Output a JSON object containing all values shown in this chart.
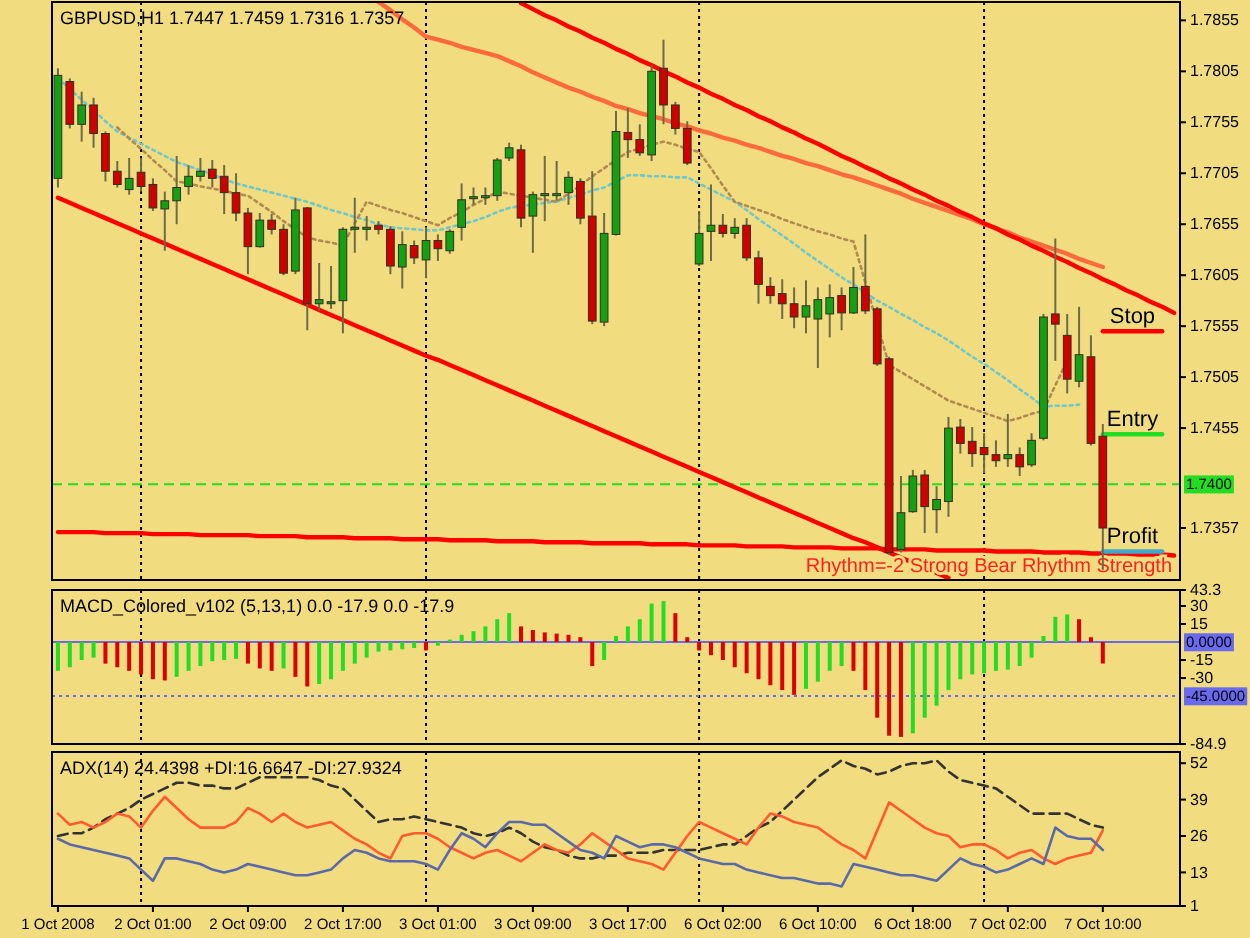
{
  "chart_data": [
    {
      "type": "candlestick",
      "title": "GBPUSD,H1 1.7447 1.7459 1.7316 1.7357",
      "tick_labels": "y",
      "grid": "x",
      "ylim": [
        1.7306,
        1.7873
      ],
      "yticks": [
        1.7855,
        1.7805,
        1.7755,
        1.7705,
        1.7655,
        1.7605,
        1.7555,
        1.7505,
        1.7455,
        1.7357
      ],
      "categories": [
        null,
        null,
        null,
        null,
        null,
        null,
        null,
        null,
        null,
        null,
        null,
        null,
        null,
        null,
        null,
        null,
        null,
        null,
        null,
        null,
        null,
        null,
        null,
        null,
        null,
        null,
        null,
        null,
        null,
        null,
        null,
        null,
        null,
        null,
        null,
        null,
        null,
        null,
        null,
        null,
        null,
        null,
        null,
        null,
        null,
        null,
        null,
        null,
        null,
        null,
        null,
        null,
        null,
        null,
        null,
        null,
        null,
        null,
        null,
        null,
        null,
        null,
        null,
        null,
        null,
        null,
        null,
        null,
        null,
        null,
        null,
        null,
        null,
        null,
        null,
        null,
        null,
        null,
        null,
        null,
        null,
        null,
        null,
        null,
        null,
        null,
        null,
        null,
        null,
        null,
        null,
        null,
        null,
        null,
        null
      ],
      "ohlc": [
        [
          1.77,
          1.7808,
          1.7691,
          1.7801
        ],
        [
          1.7795,
          1.7798,
          1.7749,
          1.7753
        ],
        [
          1.7753,
          1.7785,
          1.7736,
          1.7772
        ],
        [
          1.7772,
          1.7779,
          1.773,
          1.7744
        ],
        [
          1.7744,
          1.7746,
          1.7697,
          1.7707
        ],
        [
          1.7707,
          1.7717,
          1.7691,
          1.7694
        ],
        [
          1.7689,
          1.772,
          1.7684,
          1.77
        ],
        [
          1.7706,
          1.772,
          1.7687,
          1.7692
        ],
        [
          1.7694,
          1.77,
          1.7668,
          1.7671
        ],
        [
          1.767,
          1.7687,
          1.7629,
          1.7678
        ],
        [
          1.7678,
          1.7722,
          1.7655,
          1.7691
        ],
        [
          1.7692,
          1.7713,
          1.7684,
          1.7702
        ],
        [
          1.7702,
          1.772,
          1.7697,
          1.7707
        ],
        [
          1.7709,
          1.7718,
          1.7691,
          1.77
        ],
        [
          1.7702,
          1.7713,
          1.7665,
          1.7686
        ],
        [
          1.7686,
          1.7705,
          1.7658,
          1.7666
        ],
        [
          1.7666,
          1.7671,
          1.7606,
          1.7633
        ],
        [
          1.7633,
          1.7666,
          1.7632,
          1.7659
        ],
        [
          1.7659,
          1.7665,
          1.7645,
          1.765
        ],
        [
          1.765,
          1.7655,
          1.7605,
          1.7607
        ],
        [
          1.7609,
          1.7681,
          1.7606,
          1.7669
        ],
        [
          1.7671,
          1.7672,
          1.7551,
          1.7577
        ],
        [
          1.7577,
          1.7617,
          1.757,
          1.7581
        ],
        [
          1.7578,
          1.7614,
          1.7572,
          1.7579
        ],
        [
          1.758,
          1.7652,
          1.7548,
          1.765
        ],
        [
          1.7651,
          1.7681,
          1.7627,
          1.7652
        ],
        [
          1.7651,
          1.7663,
          1.7639,
          1.7652
        ],
        [
          1.7654,
          1.7658,
          1.7645,
          1.765
        ],
        [
          1.765,
          1.7653,
          1.7606,
          1.7614
        ],
        [
          1.7613,
          1.7648,
          1.7592,
          1.7635
        ],
        [
          1.7634,
          1.7639,
          1.7616,
          1.7622
        ],
        [
          1.762,
          1.7652,
          1.7602,
          1.7639
        ],
        [
          1.7639,
          1.7645,
          1.7619,
          1.7631
        ],
        [
          1.7629,
          1.765,
          1.7626,
          1.7648
        ],
        [
          1.7652,
          1.7695,
          1.7639,
          1.7679
        ],
        [
          1.7681,
          1.7691,
          1.7674,
          1.7682
        ],
        [
          1.7683,
          1.7691,
          1.7674,
          1.7683
        ],
        [
          1.7683,
          1.772,
          1.7678,
          1.7718
        ],
        [
          1.772,
          1.7735,
          1.7717,
          1.773
        ],
        [
          1.7728,
          1.7733,
          1.7652,
          1.7661
        ],
        [
          1.7663,
          1.7687,
          1.7627,
          1.7684
        ],
        [
          1.7684,
          1.7722,
          1.7658,
          1.7685
        ],
        [
          1.7685,
          1.7717,
          1.7678,
          1.7685
        ],
        [
          1.7686,
          1.7707,
          1.7674,
          1.7701
        ],
        [
          1.7697,
          1.77,
          1.7655,
          1.7661
        ],
        [
          1.7663,
          1.7707,
          1.7557,
          1.756
        ],
        [
          1.7559,
          1.7666,
          1.7555,
          1.7646
        ],
        [
          1.7645,
          1.7766,
          1.7644,
          1.7746
        ],
        [
          1.7745,
          1.7769,
          1.772,
          1.7738
        ],
        [
          1.7738,
          1.7753,
          1.7722,
          1.7725
        ],
        [
          1.7723,
          1.7811,
          1.7717,
          1.7805
        ],
        [
          1.7808,
          1.7836,
          1.7753,
          1.7772
        ],
        [
          1.7772,
          1.7775,
          1.7743,
          1.7749
        ],
        [
          1.7749,
          1.7756,
          1.7713,
          1.7715
        ],
        [
          1.7616,
          1.7668,
          1.7614,
          1.7646
        ],
        [
          1.7648,
          1.7694,
          1.7619,
          1.7654
        ],
        [
          1.7654,
          1.7665,
          1.7642,
          1.7646
        ],
        [
          1.7646,
          1.7661,
          1.7641,
          1.7652
        ],
        [
          1.7654,
          1.7661,
          1.7619,
          1.7622
        ],
        [
          1.7622,
          1.7629,
          1.7577,
          1.7596
        ],
        [
          1.7594,
          1.7603,
          1.7577,
          1.7585
        ],
        [
          1.7587,
          1.7601,
          1.7562,
          1.7577
        ],
        [
          1.7577,
          1.7593,
          1.7553,
          1.7564
        ],
        [
          1.7564,
          1.76,
          1.7548,
          1.7575
        ],
        [
          1.7562,
          1.7593,
          1.7514,
          1.7581
        ],
        [
          1.7567,
          1.7596,
          1.7544,
          1.7583
        ],
        [
          1.7585,
          1.7593,
          1.7551,
          1.7568
        ],
        [
          1.7568,
          1.7613,
          1.7567,
          1.7593
        ],
        [
          1.7594,
          1.7645,
          1.7567,
          1.757
        ],
        [
          1.7572,
          1.7574,
          1.7516,
          1.7518
        ],
        [
          1.7523,
          1.7525,
          1.7331,
          1.7333
        ],
        [
          1.7336,
          1.7408,
          1.7333,
          1.7372
        ],
        [
          1.7373,
          1.7414,
          1.7372,
          1.7408
        ],
        [
          1.7409,
          1.7414,
          1.7352,
          1.7378
        ],
        [
          1.7375,
          1.7398,
          1.7352,
          1.7385
        ],
        [
          1.7383,
          1.7466,
          1.7368,
          1.7455
        ],
        [
          1.7456,
          1.7464,
          1.743,
          1.744
        ],
        [
          1.7442,
          1.7456,
          1.7417,
          1.743
        ],
        [
          1.7436,
          1.745,
          1.7411,
          1.7429
        ],
        [
          1.7429,
          1.7443,
          1.7417,
          1.7423
        ],
        [
          1.7425,
          1.7469,
          1.7417,
          1.7429
        ],
        [
          1.7429,
          1.7436,
          1.7408,
          1.7417
        ],
        [
          1.7419,
          1.745,
          1.7417,
          1.7443
        ],
        [
          1.7445,
          1.7567,
          1.7443,
          1.7564
        ],
        [
          1.7567,
          1.7641,
          1.7521,
          1.7557
        ],
        [
          1.7546,
          1.7567,
          1.7489,
          1.7503
        ],
        [
          1.7501,
          1.7574,
          1.7495,
          1.7527
        ],
        [
          1.7525,
          1.7546,
          1.7438,
          1.744
        ],
        [
          1.7447,
          1.7459,
          1.7316,
          1.7357
        ],
        null,
        null,
        null,
        null,
        null,
        null
      ],
      "series": [
        {
          "type": "line",
          "color": "#ff6a3c",
          "values": [
            null,
            null,
            null,
            null,
            null,
            null,
            null,
            null,
            null,
            null,
            null,
            null,
            null,
            null,
            null,
            null,
            null,
            null,
            null,
            null,
            null,
            null,
            null,
            null,
            null,
            null,
            null,
            1.7873,
            1.7865,
            1.7856,
            1.7848,
            1.7839,
            1.7836,
            1.7833,
            1.7829,
            1.7826,
            1.7823,
            1.782,
            1.7815,
            1.781,
            1.7804,
            1.7799,
            1.7794,
            1.7789,
            1.7785,
            1.778,
            1.7776,
            1.7771,
            1.7768,
            1.7764,
            1.7761,
            1.7758,
            1.7754,
            1.7751,
            1.7747,
            1.7744,
            1.774,
            1.7737,
            1.7733,
            1.773,
            1.7726,
            1.7722,
            1.7719,
            1.7715,
            1.7712,
            1.7708,
            1.7704,
            1.7701,
            1.7697,
            1.7693,
            1.7689,
            1.7685,
            1.768,
            1.7676,
            1.7672,
            1.7668,
            1.7664,
            1.766,
            1.7655,
            1.7651,
            1.7647,
            1.7642,
            1.7638,
            1.7634,
            1.763,
            1.7626,
            1.7621,
            1.7617,
            1.7613,
            null,
            null,
            null,
            null,
            null,
            null
          ]
        },
        {
          "type": "line",
          "color": "#ff0000",
          "values": [
            null,
            null,
            null,
            null,
            null,
            null,
            null,
            null,
            null,
            null,
            null,
            null,
            null,
            null,
            null,
            null,
            null,
            null,
            null,
            null,
            null,
            null,
            null,
            null,
            null,
            null,
            null,
            null,
            null,
            null,
            null,
            null,
            null,
            null,
            null,
            null,
            null,
            null,
            null,
            1.7872,
            1.7866,
            1.786,
            1.7855,
            1.7849,
            1.7844,
            1.7838,
            1.7833,
            1.7827,
            1.7822,
            1.7816,
            1.7811,
            1.7805,
            1.78,
            1.7794,
            1.7789,
            1.7783,
            1.7778,
            1.7772,
            1.7767,
            1.7761,
            1.7756,
            1.775,
            1.7745,
            1.7739,
            1.7734,
            1.7728,
            1.7722,
            1.7717,
            1.7711,
            1.7706,
            1.77,
            1.7695,
            1.7689,
            1.7684,
            1.7678,
            1.7673,
            1.7667,
            1.7662,
            1.7656,
            1.7651,
            1.7645,
            1.764,
            1.7634,
            1.7629,
            1.7623,
            1.7618,
            1.7612,
            1.7607,
            1.7601,
            1.7596,
            1.759,
            1.7585,
            1.7579,
            1.7574,
            1.7568
          ]
        },
        {
          "type": "line",
          "color": "#ff0000",
          "values": [
            1.7681,
            1.7676,
            1.7671,
            1.7666,
            1.7661,
            1.7656,
            1.7651,
            1.7646,
            1.7641,
            1.7636,
            1.7631,
            1.7626,
            1.7621,
            1.7616,
            1.7611,
            1.7606,
            1.7601,
            1.7596,
            1.7591,
            1.7586,
            1.7581,
            1.7576,
            1.7571,
            1.7566,
            1.7561,
            1.7556,
            1.7551,
            1.7546,
            1.7541,
            1.7536,
            1.7531,
            1.7526,
            1.7522,
            1.7517,
            1.7512,
            1.7507,
            1.7502,
            1.7497,
            1.7492,
            1.7487,
            1.7482,
            1.7477,
            1.7472,
            1.7467,
            1.7462,
            1.7457,
            1.7452,
            1.7447,
            1.7442,
            1.7437,
            1.7432,
            1.7427,
            1.7422,
            1.7417,
            1.7412,
            1.7407,
            1.7402,
            1.7397,
            1.7392,
            1.7387,
            1.7382,
            1.7377,
            1.7372,
            1.7367,
            1.7362,
            1.7357,
            1.7352,
            1.7347,
            1.7343,
            1.7338,
            1.7333,
            1.7328,
            1.7323,
            1.7318,
            1.7313,
            1.7308,
            null,
            null,
            null,
            null,
            null,
            null,
            null,
            null,
            null,
            null,
            null,
            null,
            null,
            null,
            null,
            null,
            null,
            null,
            null
          ]
        },
        {
          "type": "line",
          "color": "#ff0000",
          "values": [
            1.7353,
            1.7353,
            1.7353,
            1.7353,
            1.7352,
            1.7352,
            1.7352,
            1.7352,
            1.7351,
            1.7351,
            1.7351,
            1.7351,
            1.735,
            1.735,
            1.735,
            1.735,
            1.735,
            1.7349,
            1.7349,
            1.7349,
            1.7349,
            1.7348,
            1.7348,
            1.7348,
            1.7348,
            1.7347,
            1.7347,
            1.7347,
            1.7347,
            1.7346,
            1.7346,
            1.7346,
            1.7346,
            1.7345,
            1.7345,
            1.7345,
            1.7345,
            1.7344,
            1.7344,
            1.7344,
            1.7344,
            1.7343,
            1.7343,
            1.7343,
            1.7343,
            1.7342,
            1.7342,
            1.7342,
            1.7342,
            1.7342,
            1.7341,
            1.7341,
            1.7341,
            1.7341,
            1.734,
            1.734,
            1.734,
            1.734,
            1.7339,
            1.7339,
            1.7339,
            1.7339,
            1.7338,
            1.7338,
            1.7338,
            1.7338,
            1.7337,
            1.7337,
            1.7337,
            1.7337,
            1.7336,
            1.7336,
            1.7336,
            1.7336,
            1.7335,
            1.7335,
            1.7335,
            1.7335,
            1.7335,
            1.7334,
            1.7334,
            1.7334,
            1.7334,
            1.7333,
            1.7333,
            1.7333,
            1.7333,
            1.7332,
            1.7332,
            1.7332,
            1.7332,
            1.7331,
            1.7331,
            1.7331,
            1.733
          ]
        },
        {
          "type": "line",
          "color": "#70c8c8",
          "line_style": "dotted",
          "values": [
            1.7798,
            1.7788,
            1.7777,
            1.7767,
            1.7756,
            1.7746,
            1.774,
            1.7734,
            1.7728,
            1.7722,
            1.7716,
            1.7712,
            1.7708,
            1.7704,
            1.7699,
            1.7695,
            1.7692,
            1.7689,
            1.7686,
            1.7683,
            1.768,
            1.7677,
            1.7673,
            1.7669,
            1.7666,
            1.7662,
            1.7659,
            1.7655,
            1.7652,
            1.7651,
            1.765,
            1.7649,
            1.7649,
            1.7652,
            1.7655,
            1.7658,
            1.7662,
            1.7667,
            1.7671,
            1.7673,
            1.7674,
            1.7676,
            1.7677,
            1.7681,
            1.7684,
            1.7688,
            1.7691,
            1.7697,
            1.7703,
            1.7703,
            1.7702,
            1.7702,
            1.7701,
            1.7701,
            1.7695,
            1.7689,
            1.7683,
            1.7677,
            1.7669,
            1.766,
            1.7652,
            1.7644,
            1.7636,
            1.7627,
            1.7619,
            1.7611,
            1.7603,
            1.7596,
            1.7588,
            1.758,
            1.7574,
            1.7567,
            1.7561,
            1.7554,
            1.7548,
            1.7541,
            1.7533,
            1.7525,
            1.7518,
            1.751,
            1.7502,
            1.7493,
            1.7485,
            1.7476,
            1.7477,
            1.7477,
            1.7478,
            null,
            null,
            null,
            null,
            null,
            null,
            null,
            null
          ]
        },
        {
          "type": "line",
          "color": "#b08a50",
          "line_style": "dotted",
          "values": [
            null,
            null,
            null,
            null,
            null,
            1.775,
            1.7739,
            1.7729,
            1.7718,
            1.7708,
            1.7697,
            1.7695,
            1.7692,
            1.769,
            1.7688,
            1.7685,
            1.7683,
            1.7675,
            1.7667,
            1.7658,
            1.765,
            1.7642,
            1.7639,
            1.7637,
            1.7634,
            1.7656,
            1.7677,
            1.7673,
            1.7669,
            1.7666,
            1.7662,
            1.7658,
            1.7654,
            1.7661,
            1.7667,
            1.7674,
            1.768,
            1.7687,
            1.7685,
            1.7683,
            1.7681,
            1.7679,
            1.7677,
            1.7685,
            1.7693,
            1.7702,
            1.771,
            1.7718,
            1.7726,
            1.7729,
            1.7733,
            1.7736,
            1.7733,
            1.7729,
            1.7726,
            1.771,
            1.7693,
            1.7677,
            1.7673,
            1.7669,
            1.7665,
            1.766,
            1.7656,
            1.7652,
            1.7648,
            1.7645,
            1.7641,
            1.7638,
            1.7598,
            1.7557,
            1.7517,
            1.751,
            1.7503,
            1.7496,
            1.7489,
            1.7482,
            1.7478,
            1.7474,
            1.747,
            1.7466,
            1.7462,
            1.7465,
            1.7469,
            1.7472,
            1.7497,
            1.7521,
            null,
            null,
            null,
            null,
            null,
            null,
            null,
            null,
            null
          ]
        },
        {
          "type": "line",
          "name": "Stop",
          "color": "#ff0000",
          "values": [
            null,
            null,
            null,
            null,
            null,
            null,
            null,
            null,
            null,
            null,
            null,
            null,
            null,
            null,
            null,
            null,
            null,
            null,
            null,
            null,
            null,
            null,
            null,
            null,
            null,
            null,
            null,
            null,
            null,
            null,
            null,
            null,
            null,
            null,
            null,
            null,
            null,
            null,
            null,
            null,
            null,
            null,
            null,
            null,
            null,
            null,
            null,
            null,
            null,
            null,
            null,
            null,
            null,
            null,
            null,
            null,
            null,
            null,
            null,
            null,
            null,
            null,
            null,
            null,
            null,
            null,
            null,
            null,
            null,
            null,
            null,
            null,
            null,
            null,
            null,
            null,
            null,
            null,
            null,
            null,
            null,
            null,
            null,
            null,
            null,
            null,
            null,
            null,
            1.755,
            1.755,
            1.755,
            1.755,
            1.755,
            1.755,
            null
          ]
        },
        {
          "type": "line",
          "name": "Entry",
          "color": "#22dd22",
          "values": [
            null,
            null,
            null,
            null,
            null,
            null,
            null,
            null,
            null,
            null,
            null,
            null,
            null,
            null,
            null,
            null,
            null,
            null,
            null,
            null,
            null,
            null,
            null,
            null,
            null,
            null,
            null,
            null,
            null,
            null,
            null,
            null,
            null,
            null,
            null,
            null,
            null,
            null,
            null,
            null,
            null,
            null,
            null,
            null,
            null,
            null,
            null,
            null,
            null,
            null,
            null,
            null,
            null,
            null,
            null,
            null,
            null,
            null,
            null,
            null,
            null,
            null,
            null,
            null,
            null,
            null,
            null,
            null,
            null,
            null,
            null,
            null,
            null,
            null,
            null,
            null,
            null,
            null,
            null,
            null,
            null,
            null,
            null,
            null,
            null,
            null,
            null,
            null,
            1.7449,
            1.7449,
            1.7449,
            1.7449,
            1.7449,
            1.7449,
            null
          ]
        },
        {
          "type": "line",
          "name": "Profit",
          "color": "#40a8c8",
          "values": [
            null,
            null,
            null,
            null,
            null,
            null,
            null,
            null,
            null,
            null,
            null,
            null,
            null,
            null,
            null,
            null,
            null,
            null,
            null,
            null,
            null,
            null,
            null,
            null,
            null,
            null,
            null,
            null,
            null,
            null,
            null,
            null,
            null,
            null,
            null,
            null,
            null,
            null,
            null,
            null,
            null,
            null,
            null,
            null,
            null,
            null,
            null,
            null,
            null,
            null,
            null,
            null,
            null,
            null,
            null,
            null,
            null,
            null,
            null,
            null,
            null,
            null,
            null,
            null,
            null,
            null,
            null,
            null,
            null,
            null,
            null,
            null,
            null,
            null,
            null,
            null,
            null,
            null,
            null,
            null,
            null,
            null,
            null,
            null,
            null,
            null,
            null,
            null,
            1.7334,
            1.7334,
            1.7334,
            1.7334,
            1.7334,
            1.7334,
            null
          ]
        }
      ],
      "ref_lines": [
        {
          "axis": "y",
          "value": 1.74,
          "label": "1.7400",
          "color": "#22dd22",
          "line_style": "dashed"
        }
      ],
      "annotations": [
        "Rhythm=-2 Strong Bear Rhythm Strength"
      ]
    },
    {
      "type": "bar",
      "title": "MACD_Colored_v102 (5,13,1) 0.0 -17.9 0.0 -17.9",
      "tick_labels": "y",
      "grid": "x",
      "ylim": [
        -84.9,
        43.3
      ],
      "yticks": [
        43.3,
        30,
        15,
        -15,
        -30,
        -84.9
      ],
      "categories": [
        null,
        null,
        null,
        null,
        null,
        null,
        null,
        null,
        null,
        null,
        null,
        null,
        null,
        null,
        null,
        null,
        null,
        null,
        null,
        null,
        null,
        null,
        null,
        null,
        null,
        null,
        null,
        null,
        null,
        null,
        null,
        null,
        null,
        null,
        null,
        null,
        null,
        null,
        null,
        null,
        null,
        null,
        null,
        null,
        null,
        null,
        null,
        null,
        null,
        null,
        null,
        null,
        null,
        null,
        null,
        null,
        null,
        null,
        null,
        null,
        null,
        null,
        null,
        null,
        null,
        null,
        null,
        null,
        null,
        null,
        null,
        null,
        null,
        null,
        null,
        null,
        null,
        null,
        null,
        null,
        null,
        null,
        null,
        null,
        null,
        null,
        null,
        null,
        null,
        null,
        null,
        null,
        null,
        null,
        null
      ],
      "values": [
        -24,
        -21,
        -15,
        -13,
        -18,
        -21,
        -24,
        -27,
        -31,
        -32,
        -29,
        -24,
        -20,
        -16,
        -15,
        -14,
        -18,
        -22,
        -24,
        -22,
        -29,
        -37,
        -35,
        -31,
        -24,
        -18,
        -13,
        -8,
        -7,
        -6,
        -5,
        -7,
        -3,
        2,
        6,
        9,
        13,
        19,
        24,
        13,
        10,
        8,
        7,
        6,
        4,
        -20,
        -15,
        5,
        13,
        19,
        32,
        34,
        24,
        4,
        -7,
        -11,
        -15,
        -21,
        -26,
        -31,
        -36,
        -40,
        -44,
        -39,
        -33,
        -24,
        -20,
        -24,
        -40,
        -63,
        -78,
        -79,
        -76,
        -63,
        -53,
        -40,
        -31,
        -27,
        -26,
        -24,
        -23,
        -20,
        -13,
        5,
        21,
        23,
        19,
        4,
        -17.9,
        null,
        null,
        null,
        null,
        null,
        null
      ],
      "ref_lines": [
        {
          "axis": "y",
          "value": 0,
          "label": "0.0000",
          "color": "#6a6af0",
          "line_style": "solid"
        },
        {
          "axis": "y",
          "value": -45,
          "label": "-45.0000",
          "color": "#6a6af0",
          "line_style": "dotted"
        }
      ]
    },
    {
      "type": "line",
      "title": "ADX(14) 24.4398 +DI:16.6647 -DI:27.9324",
      "grid": "x",
      "ylim": [
        1,
        56
      ],
      "yticks": [
        52,
        39,
        26,
        13,
        1
      ],
      "categories": [
        "1 Oct 2008",
        null,
        null,
        null,
        null,
        null,
        null,
        null,
        "2 Oct 01:00",
        null,
        null,
        null,
        null,
        null,
        null,
        null,
        "2 Oct 09:00",
        null,
        null,
        null,
        null,
        null,
        null,
        null,
        "2 Oct 17:00",
        null,
        null,
        null,
        null,
        null,
        null,
        null,
        "3 Oct 01:00",
        null,
        null,
        null,
        null,
        null,
        null,
        null,
        "3 Oct 09:00",
        null,
        null,
        null,
        null,
        null,
        null,
        null,
        "3 Oct 17:00",
        null,
        null,
        null,
        null,
        null,
        null,
        null,
        "6 Oct 02:00",
        null,
        null,
        null,
        null,
        null,
        null,
        null,
        "6 Oct 10:00",
        null,
        null,
        null,
        null,
        null,
        null,
        null,
        "6 Oct 18:00",
        null,
        null,
        null,
        null,
        null,
        null,
        null,
        "7 Oct 02:00",
        null,
        null,
        null,
        null,
        null,
        null,
        null,
        "7 Oct 10:00",
        null,
        null,
        null,
        null,
        null,
        null
      ],
      "series": [
        {
          "color": "#333333",
          "line_style": "dashed",
          "values": [
            26,
            27,
            27,
            29,
            32,
            34,
            36,
            39,
            41,
            43,
            45,
            45,
            44,
            44,
            43,
            43,
            45,
            47,
            47,
            47,
            47,
            47,
            46,
            44,
            43,
            39,
            35,
            31,
            32,
            32,
            33,
            32,
            31,
            30,
            29,
            27,
            26,
            27,
            29,
            27,
            24,
            22,
            21,
            19,
            18,
            18,
            19,
            19,
            20,
            20,
            20,
            21,
            21,
            21,
            21,
            22,
            23,
            23,
            26,
            29,
            31,
            35,
            39,
            43,
            47,
            50,
            53,
            51,
            50,
            48,
            49,
            51,
            52,
            52,
            53,
            49,
            46,
            45,
            44,
            43,
            40,
            37,
            34,
            34,
            34,
            34,
            32,
            30,
            29,
            null,
            null,
            null,
            null,
            null,
            null
          ]
        },
        {
          "color": "#ff5a30",
          "values": [
            34,
            30,
            31,
            29,
            31,
            34,
            33,
            29,
            35,
            40,
            36,
            32,
            29,
            29,
            29,
            31,
            36,
            34,
            31,
            34,
            31,
            29,
            30,
            31,
            28,
            25,
            23,
            20,
            18,
            26,
            27,
            27,
            25,
            22,
            20,
            18,
            20,
            21,
            19,
            17,
            20,
            23,
            21,
            20,
            23,
            27,
            24,
            21,
            18,
            17,
            16,
            14,
            20,
            26,
            31,
            29,
            27,
            25,
            23,
            29,
            34,
            33,
            31,
            30,
            29,
            26,
            23,
            21,
            18,
            28,
            38,
            35,
            32,
            29,
            27,
            26,
            22,
            23,
            23,
            21,
            18,
            20,
            21,
            18,
            16,
            18,
            19,
            20,
            28,
            null,
            null,
            null,
            null,
            null,
            null
          ]
        },
        {
          "color": "#5a6aa8",
          "values": [
            25,
            23,
            22,
            21,
            20,
            19,
            18,
            14,
            10,
            18,
            18,
            17,
            16,
            14,
            13,
            14,
            16,
            15,
            14,
            13,
            12,
            12,
            13,
            14,
            18,
            21,
            20,
            18,
            17,
            17,
            17,
            16,
            14,
            21,
            27,
            25,
            22,
            27,
            31,
            31,
            30,
            30,
            27,
            24,
            21,
            20,
            18,
            26,
            24,
            22,
            23,
            23,
            22,
            20,
            18,
            17,
            16,
            16,
            14,
            13,
            12,
            11,
            11,
            10,
            9,
            9,
            8,
            16,
            15,
            14,
            13,
            12,
            12,
            11,
            10,
            14,
            18,
            16,
            15,
            13,
            14,
            16,
            18,
            16,
            29,
            26,
            25,
            25,
            21,
            null,
            null,
            null,
            null,
            null,
            null
          ]
        }
      ]
    }
  ]
}
